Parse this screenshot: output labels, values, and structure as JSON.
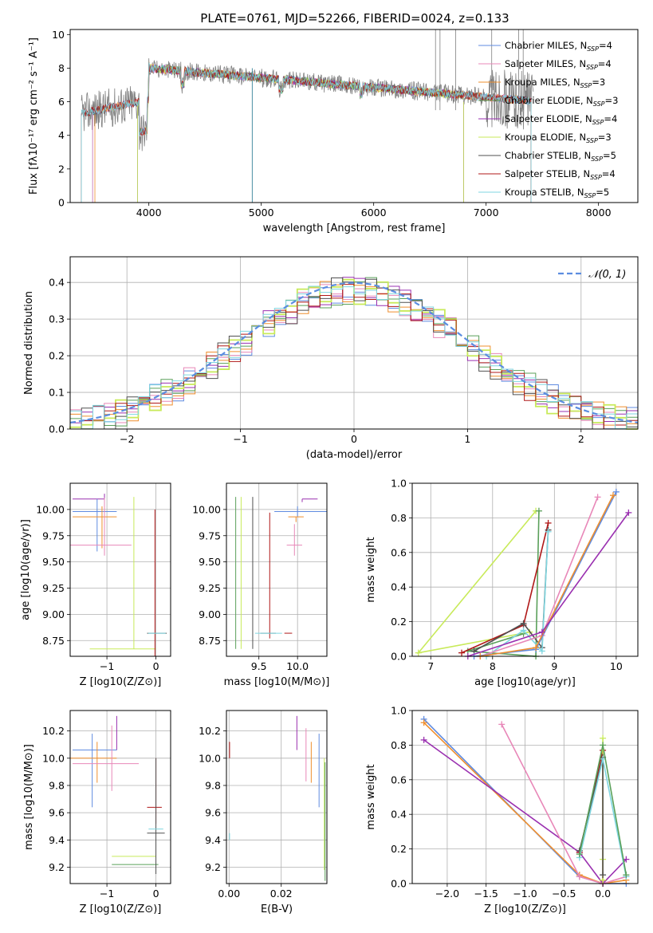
{
  "title": "PLATE=0761, MJD=52266, FIBERID=0024, z=0.133",
  "colors": {
    "Chabrier MILES": "#5f8be0",
    "Salpeter MILES": "#e887b8",
    "Kroupa MILES": "#ef8f2e",
    "Chabrier ELODIE": "#5aa05a",
    "Salpeter ELODIE": "#9a30b0",
    "Kroupa ELODIE": "#c8ea5a",
    "Chabrier STELIB": "#505050",
    "Salpeter STELIB": "#b01818",
    "Kroupa STELIB": "#7fd6e0",
    "data": "#808080",
    "gaussian": "#5b8de0"
  },
  "chart_data": [
    {
      "id": "spectrum",
      "type": "line",
      "title": "PLATE=0761, MJD=52266, FIBERID=0024, z=0.133",
      "xlabel": "wavelength [Angstrom, rest frame]",
      "ylabel": "Flux [fλ10⁻¹⁷ erg cm⁻² s⁻¹ A⁻¹]",
      "xlim": [
        3300,
        8350
      ],
      "ylim": [
        0,
        10.3
      ],
      "xticks": [
        4000,
        5000,
        6000,
        7000,
        8000
      ],
      "yticks": [
        0,
        2,
        4,
        6,
        8,
        10
      ],
      "legend_position": "top-right",
      "legend": [
        {
          "name": "Chabrier MILES",
          "label": "Chabrier MILES, N",
          "sub": "SSP",
          "count": "=4"
        },
        {
          "name": "Salpeter MILES",
          "label": "Salpeter MILES, N",
          "sub": "SSP",
          "count": "=4"
        },
        {
          "name": "Kroupa MILES",
          "label": "Kroupa MILES, N",
          "sub": "SSP",
          "count": "=3"
        },
        {
          "name": "Chabrier ELODIE",
          "label": "Chabrier ELODIE, N",
          "sub": "SSP",
          "count": "=3"
        },
        {
          "name": "Salpeter ELODIE",
          "label": "Salpeter ELODIE, N",
          "sub": "SSP",
          "count": "=4"
        },
        {
          "name": "Kroupa ELODIE",
          "label": "Kroupa ELODIE, N",
          "sub": "SSP",
          "count": "=3"
        },
        {
          "name": "Chabrier STELIB",
          "label": "Chabrier STELIB, N",
          "sub": "SSP",
          "count": "=5"
        },
        {
          "name": "Salpeter STELIB",
          "label": "Salpeter STELIB, N",
          "sub": "SSP",
          "count": "=4"
        },
        {
          "name": "Kroupa STELIB",
          "label": "Kroupa STELIB, N",
          "sub": "SSP",
          "count": "=5"
        }
      ],
      "series": [
        {
          "name": "Chabrier MILES",
          "range": [
            3500,
            7400
          ]
        },
        {
          "name": "Salpeter MILES",
          "range": [
            3500,
            7400
          ]
        },
        {
          "name": "Kroupa MILES",
          "range": [
            3520,
            7400
          ]
        },
        {
          "name": "Chabrier ELODIE",
          "range": [
            3900,
            6800
          ]
        },
        {
          "name": "Salpeter ELODIE",
          "range": [
            3900,
            6800
          ]
        },
        {
          "name": "Kroupa ELODIE",
          "range": [
            3900,
            6800
          ]
        },
        {
          "name": "Chabrier STELIB",
          "range": [
            3400,
            7400
          ]
        },
        {
          "name": "Salpeter STELIB",
          "range": [
            3400,
            7400
          ]
        },
        {
          "name": "Kroupa STELIB",
          "range": [
            3400,
            7400
          ]
        }
      ]
    },
    {
      "id": "residuals",
      "type": "line",
      "xlabel": "(data-model)/error",
      "ylabel": "Normed distribution",
      "xlim": [
        -2.5,
        2.5
      ],
      "ylim": [
        0,
        0.47
      ],
      "xticks": [
        -2,
        -1,
        0,
        1,
        2
      ],
      "yticks": [
        0.0,
        0.1,
        0.2,
        0.3,
        0.4
      ],
      "legend_position": "top-right",
      "gaussian_label": "𝒩(0, 1)",
      "series": [
        {
          "name": "Chabrier MILES",
          "seed": 1
        },
        {
          "name": "Salpeter MILES",
          "seed": 2
        },
        {
          "name": "Kroupa MILES",
          "seed": 3
        },
        {
          "name": "Chabrier ELODIE",
          "seed": 4
        },
        {
          "name": "Salpeter ELODIE",
          "seed": 5
        },
        {
          "name": "Kroupa ELODIE",
          "seed": 6
        },
        {
          "name": "Chabrier STELIB",
          "seed": 7
        },
        {
          "name": "Salpeter STELIB",
          "seed": 8
        },
        {
          "name": "Kroupa STELIB",
          "seed": 9
        }
      ]
    },
    {
      "id": "age_vs_Z",
      "type": "scatter",
      "xlabel": "Z [log10(Z/Z⊙)]",
      "ylabel": "age  [log10(age/yr)]",
      "xlim": [
        -1.75,
        0.3
      ],
      "ylim": [
        8.6,
        10.25
      ],
      "xticks": [
        -1,
        0
      ],
      "yticks": [
        8.75,
        9.0,
        9.25,
        9.5,
        9.75,
        10.0
      ],
      "errorbars": [
        {
          "name": "Salpeter ELODIE",
          "x": -1.05,
          "y": 10.1,
          "xerr": [
            0.65,
            0.0
          ],
          "yerr": [
            0.0,
            0.05
          ]
        },
        {
          "name": "Chabrier MILES",
          "x": -1.2,
          "y": 9.98,
          "xerr": [
            0.5,
            0.4
          ],
          "yerr": [
            0.38,
            0.12
          ]
        },
        {
          "name": "Kroupa MILES",
          "x": -1.1,
          "y": 9.93,
          "xerr": [
            0.6,
            0.3
          ],
          "yerr": [
            0.3,
            0.1
          ]
        },
        {
          "name": "Salpeter MILES",
          "x": -1.05,
          "y": 9.66,
          "xerr": [
            0.7,
            0.55
          ],
          "yerr": [
            0.1,
            0.45
          ]
        },
        {
          "name": "Kroupa ELODIE",
          "x": -0.45,
          "y": 8.67,
          "xerr": [
            0.9,
            0.45
          ],
          "yerr": [
            0.0,
            1.45
          ]
        },
        {
          "name": "Salpeter STELIB",
          "x": -0.02,
          "y": 8.9,
          "xerr": [
            0.0,
            0.0
          ],
          "yerr": [
            0.3,
            1.1
          ]
        },
        {
          "name": "Chabrier STELIB",
          "x": 0.02,
          "y": 8.82,
          "xerr": [
            0.2,
            0.2
          ],
          "yerr": [
            0.0,
            0.0
          ]
        },
        {
          "name": "Kroupa STELIB",
          "x": 0.02,
          "y": 8.82,
          "xerr": [
            0.18,
            0.18
          ],
          "yerr": [
            0.0,
            0.0
          ]
        }
      ]
    },
    {
      "id": "age_vs_mass",
      "type": "scatter",
      "xlabel": "mass [log10(M/M⊙)]",
      "ylabel": "",
      "xlim": [
        9.08,
        10.38
      ],
      "ylim": [
        8.6,
        10.25
      ],
      "xticks": [
        9.5,
        10.0
      ],
      "yticks": [
        8.75,
        9.0,
        9.25,
        9.5,
        9.75,
        10.0
      ],
      "errorbars": [
        {
          "name": "Salpeter ELODIE",
          "x": 10.06,
          "y": 10.1,
          "xerr": [
            0.0,
            0.2
          ],
          "yerr": [
            0.03,
            0.0
          ]
        },
        {
          "name": "Chabrier MILES",
          "x": 10.0,
          "y": 9.98,
          "xerr": [
            0.3,
            0.5
          ],
          "yerr": [
            0.05,
            0.05
          ]
        },
        {
          "name": "Kroupa MILES",
          "x": 9.98,
          "y": 9.93,
          "xerr": [
            0.1,
            0.1
          ],
          "yerr": [
            0.05,
            0.0
          ]
        },
        {
          "name": "Salpeter MILES",
          "x": 9.96,
          "y": 9.66,
          "xerr": [
            0.1,
            0.1
          ],
          "yerr": [
            0.1,
            0.2
          ]
        },
        {
          "name": "Chabrier STELIB",
          "x": 9.42,
          "y": 8.67,
          "xerr": [
            0.0,
            0.0
          ],
          "yerr": [
            0.0,
            1.45
          ]
        },
        {
          "name": "Kroupa ELODIE",
          "x": 9.27,
          "y": 8.67,
          "xerr": [
            0.0,
            0.0
          ],
          "yerr": [
            0.0,
            1.45
          ]
        },
        {
          "name": "Chabrier ELODIE",
          "x": 9.2,
          "y": 8.67,
          "xerr": [
            0.0,
            0.0
          ],
          "yerr": [
            0.0,
            1.45
          ]
        },
        {
          "name": "Salpeter STELIB",
          "x": 9.64,
          "y": 8.82,
          "xerr": [
            0.0,
            0.0
          ],
          "yerr": [
            0.05,
            1.15
          ]
        },
        {
          "name": "Chabrier STELIB",
          "x": 9.72,
          "y": 8.82,
          "xerr": [
            0.2,
            0.0
          ],
          "yerr": [
            0.0,
            0.0
          ]
        },
        {
          "name": "Salpeter STELIB",
          "x": 9.83,
          "y": 8.82,
          "xerr": [
            0.0,
            0.1
          ],
          "yerr": [
            0.0,
            0.0
          ]
        },
        {
          "name": "Kroupa STELIB",
          "x": 9.7,
          "y": 8.82,
          "xerr": [
            0.25,
            0.1
          ],
          "yerr": [
            0.0,
            0.0
          ]
        }
      ]
    },
    {
      "id": "weight_vs_age",
      "type": "line",
      "xlabel": "age  [log10(age/yr)]",
      "ylabel": "mass weight",
      "xlim": [
        6.7,
        10.35
      ],
      "ylim": [
        0,
        1.0
      ],
      "xticks": [
        7,
        8,
        9,
        10
      ],
      "yticks": [
        0.0,
        0.2,
        0.4,
        0.6,
        0.8,
        1.0
      ],
      "series": [
        {
          "name": "Kroupa ELODIE",
          "x": [
            8.6,
            6.8,
            8.7
          ],
          "y": [
            0.14,
            0.02,
            0.84
          ]
        },
        {
          "name": "Chabrier ELODIE",
          "x": [
            8.5,
            7.6,
            8.7,
            8.75
          ],
          "y": [
            0.13,
            0.03,
            0.0,
            0.84
          ]
        },
        {
          "name": "Salpeter STELIB",
          "x": [
            7.5,
            8.5,
            8.9
          ],
          "y": [
            0.02,
            0.18,
            0.77
          ]
        },
        {
          "name": "Chabrier STELIB",
          "x": [
            7.7,
            8.5,
            8.8,
            8.9
          ],
          "y": [
            0.03,
            0.19,
            0.05,
            0.73
          ]
        },
        {
          "name": "Kroupa STELIB",
          "x": [
            7.9,
            8.5,
            8.8,
            8.9
          ],
          "y": [
            0.0,
            0.15,
            0.03,
            0.72
          ]
        },
        {
          "name": "Salpeter MILES",
          "x": [
            7.8,
            8.8,
            9.7
          ],
          "y": [
            0.0,
            0.12,
            0.92
          ]
        },
        {
          "name": "Chabrier MILES",
          "x": [
            7.7,
            8.7,
            10.0
          ],
          "y": [
            0.0,
            0.04,
            0.95
          ]
        },
        {
          "name": "Kroupa MILES",
          "x": [
            7.8,
            8.7,
            9.95
          ],
          "y": [
            0.0,
            0.05,
            0.93
          ]
        },
        {
          "name": "Salpeter ELODIE",
          "x": [
            7.6,
            8.8,
            10.2
          ],
          "y": [
            0.0,
            0.14,
            0.83
          ]
        }
      ]
    },
    {
      "id": "mass_vs_Z",
      "type": "scatter",
      "xlabel": "Z [log10(Z/Z⊙)]",
      "ylabel": "mass [log10(M/M⊙)]",
      "xlim": [
        -1.75,
        0.3
      ],
      "ylim": [
        9.08,
        10.35
      ],
      "xticks": [
        -1,
        0
      ],
      "yticks": [
        9.2,
        9.4,
        9.6,
        9.8,
        10.0,
        10.2
      ],
      "errorbars": [
        {
          "name": "Salpeter ELODIE",
          "x": -0.8,
          "y": 10.06,
          "xerr": [
            0.85,
            0.0
          ],
          "yerr": [
            0.0,
            0.25
          ]
        },
        {
          "name": "Chabrier MILES",
          "x": -1.3,
          "y": 10.06,
          "xerr": [
            0.4,
            0.5
          ],
          "yerr": [
            0.42,
            0.12
          ]
        },
        {
          "name": "Kroupa MILES",
          "x": -1.2,
          "y": 10.0,
          "xerr": [
            0.55,
            0.4
          ],
          "yerr": [
            0.18,
            0.12
          ]
        },
        {
          "name": "Salpeter MILES",
          "x": -0.9,
          "y": 9.96,
          "xerr": [
            0.8,
            0.55
          ],
          "yerr": [
            0.2,
            0.28
          ]
        },
        {
          "name": "Kroupa ELODIE",
          "x": -0.5,
          "y": 9.28,
          "xerr": [
            0.4,
            0.5
          ],
          "yerr": [
            0.0,
            0.0
          ]
        },
        {
          "name": "Chabrier ELODIE",
          "x": -0.4,
          "y": 9.22,
          "xerr": [
            0.5,
            0.45
          ],
          "yerr": [
            0.0,
            0.0
          ]
        },
        {
          "name": "Salpeter STELIB",
          "x": 0.0,
          "y": 9.64,
          "xerr": [
            0.18,
            0.12
          ],
          "yerr": [
            0.12,
            0.36
          ]
        },
        {
          "name": "Chabrier STELIB",
          "x": 0.0,
          "y": 9.45,
          "xerr": [
            0.18,
            0.18
          ],
          "yerr": [
            0.3,
            0.55
          ]
        },
        {
          "name": "Kroupa STELIB",
          "x": 0.0,
          "y": 9.48,
          "xerr": [
            0.15,
            0.15
          ],
          "yerr": [
            0.0,
            0.0
          ]
        }
      ]
    },
    {
      "id": "mass_vs_EBV",
      "type": "scatter",
      "xlabel": "E(B-V)",
      "ylabel": "",
      "xlim": [
        -0.001,
        0.0375
      ],
      "ylim": [
        9.08,
        10.35
      ],
      "xticks": [
        0.0,
        0.02
      ],
      "yticks": [
        9.2,
        9.4,
        9.6,
        9.8,
        10.0,
        10.2
      ],
      "errorbars": [
        {
          "name": "Salpeter STELIB",
          "x": 0.0002,
          "y": 10.0,
          "xerr": [
            0.0,
            0.0
          ],
          "yerr": [
            0.0,
            0.12
          ]
        },
        {
          "name": "Kroupa STELIB",
          "x": 0.0002,
          "y": 9.45,
          "xerr": [
            0.0,
            0.0
          ],
          "yerr": [
            0.05,
            0.0
          ]
        },
        {
          "name": "Salpeter ELODIE",
          "x": 0.026,
          "y": 10.06,
          "xerr": [
            0.0,
            0.0
          ],
          "yerr": [
            0.0,
            0.25
          ]
        },
        {
          "name": "Salpeter MILES",
          "x": 0.0295,
          "y": 10.0,
          "xerr": [
            0.0,
            0.0
          ],
          "yerr": [
            0.17,
            0.22
          ]
        },
        {
          "name": "Kroupa MILES",
          "x": 0.0315,
          "y": 10.0,
          "xerr": [
            0.0,
            0.0
          ],
          "yerr": [
            0.18,
            0.12
          ]
        },
        {
          "name": "Chabrier MILES",
          "x": 0.0345,
          "y": 10.06,
          "xerr": [
            0.0,
            0.0
          ],
          "yerr": [
            0.42,
            0.12
          ]
        },
        {
          "name": "Kroupa ELODIE",
          "x": 0.0365,
          "y": 9.6,
          "xerr": [
            0.0,
            0.0
          ],
          "yerr": [
            0.42,
            0.4
          ]
        },
        {
          "name": "Chabrier ELODIE",
          "x": 0.0368,
          "y": 9.55,
          "xerr": [
            0.0,
            0.0
          ],
          "yerr": [
            0.45,
            0.42
          ]
        }
      ]
    },
    {
      "id": "weight_vs_Z",
      "type": "line",
      "xlabel": "Z [log10(Z/Z⊙)]",
      "ylabel": "mass weight",
      "xlim": [
        -2.45,
        0.45
      ],
      "ylim": [
        0,
        1.0
      ],
      "xticks": [
        -2.0,
        -1.5,
        -1.0,
        -0.5,
        0.0
      ],
      "yticks": [
        0.0,
        0.2,
        0.4,
        0.6,
        0.8,
        1.0
      ],
      "series": [
        {
          "name": "Chabrier MILES",
          "x": [
            -2.3,
            -0.3,
            0.0,
            0.3
          ],
          "y": [
            0.95,
            0.04,
            0.0,
            0.0
          ]
        },
        {
          "name": "Kroupa MILES",
          "x": [
            -2.3,
            -0.3,
            0.0,
            0.3
          ],
          "y": [
            0.93,
            0.05,
            0.0,
            0.02
          ]
        },
        {
          "name": "Salpeter ELODIE",
          "x": [
            -2.3,
            -0.3,
            0.0,
            0.3
          ],
          "y": [
            0.83,
            0.18,
            0.0,
            0.14
          ]
        },
        {
          "name": "Salpeter MILES",
          "x": [
            -1.3,
            -0.3,
            0.0,
            0.3
          ],
          "y": [
            0.92,
            0.04,
            0.0,
            0.04
          ]
        },
        {
          "name": "Salpeter STELIB",
          "x": [
            -0.3,
            0.0,
            0.0
          ],
          "y": [
            0.18,
            0.77,
            0.02
          ]
        },
        {
          "name": "Kroupa ELODIE",
          "x": [
            0.0,
            0.0,
            0.0
          ],
          "y": [
            0.84,
            0.14,
            0.02
          ]
        },
        {
          "name": "Chabrier STELIB",
          "x": [
            -0.3,
            0.0,
            0.0
          ],
          "y": [
            0.19,
            0.73,
            0.05
          ]
        },
        {
          "name": "Kroupa STELIB",
          "x": [
            -0.3,
            0.0,
            0.3
          ],
          "y": [
            0.15,
            0.72,
            0.04
          ]
        },
        {
          "name": "Chabrier ELODIE",
          "x": [
            -0.3,
            0.0,
            0.3
          ],
          "y": [
            0.17,
            0.8,
            0.05
          ]
        }
      ]
    }
  ]
}
